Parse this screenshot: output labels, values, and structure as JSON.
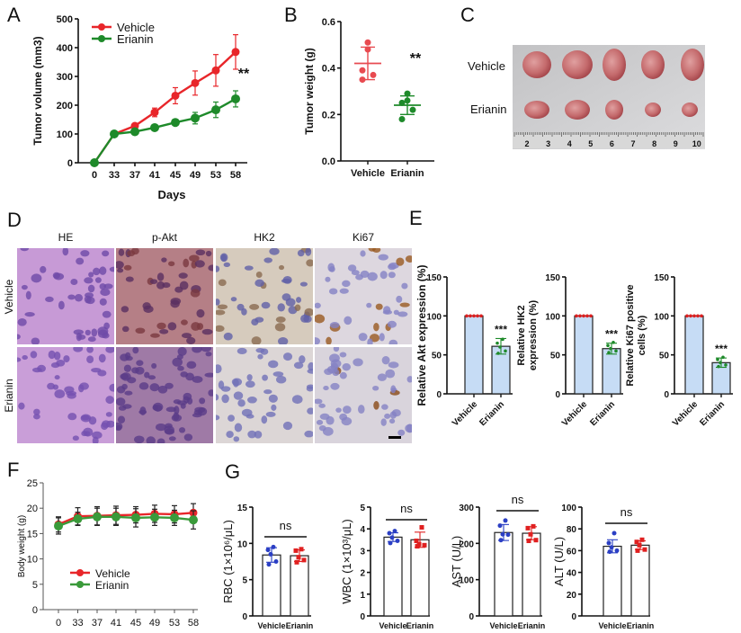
{
  "panel_labels": [
    "A",
    "B",
    "C",
    "D",
    "E",
    "F",
    "G"
  ],
  "colors": {
    "vehicle": "#e8262a",
    "erianin": "#1e8a2a",
    "erianin_f": "#3a9a3a",
    "bar_fill_e": "#c6dcf5",
    "blue": "#2b3fc4",
    "red": "#e02020"
  },
  "photo": {
    "row_labels": [
      "Vehicle",
      "Erianin"
    ],
    "ruler_ticks": [
      "2",
      "3",
      "4",
      "5",
      "6",
      "7",
      "8",
      "9",
      "10"
    ]
  },
  "histology": {
    "columns": [
      "HE",
      "p-Akt",
      "HK2",
      "Ki67"
    ],
    "rows": [
      "Vehicle",
      "Erianin"
    ]
  },
  "chart_data": [
    {
      "id": "A",
      "type": "line",
      "title": "",
      "xlabel": "Days",
      "ylabel": "Tumor volume (mm3)",
      "categories": [
        "0",
        "33",
        "37",
        "41",
        "45",
        "49",
        "53",
        "58"
      ],
      "ylim": [
        0,
        500
      ],
      "yticks": [
        "0",
        "100",
        "200",
        "300",
        "400",
        "500"
      ],
      "legend": "top-left",
      "annotation": "**",
      "series": [
        {
          "name": "Vehicle",
          "color": "#e8262a",
          "values": [
            0,
            100,
            128,
            175,
            233,
            277,
            321,
            385
          ],
          "errors": [
            0,
            5,
            8,
            15,
            28,
            42,
            55,
            60
          ]
        },
        {
          "name": "Erianin",
          "color": "#1e8a2a",
          "values": [
            0,
            100,
            108,
            122,
            140,
            155,
            184,
            222
          ],
          "errors": [
            0,
            5,
            10,
            10,
            10,
            20,
            27,
            28
          ]
        }
      ]
    },
    {
      "id": "B",
      "type": "scatter",
      "title": "",
      "xlabel": "",
      "ylabel": "Tumor weight (g)",
      "categories": [
        "Vehicle",
        "Erianin"
      ],
      "ylim": [
        0,
        0.6
      ],
      "yticks": [
        "0.0",
        "0.2",
        "0.4",
        "0.6"
      ],
      "annotation": "**",
      "groups": [
        {
          "name": "Vehicle",
          "color": "#e84a50",
          "points": [
            0.51,
            0.48,
            0.39,
            0.37,
            0.35
          ],
          "mean": 0.42,
          "sd": 0.07
        },
        {
          "name": "Erianin",
          "color": "#1e8a2a",
          "points": [
            0.29,
            0.26,
            0.25,
            0.22,
            0.18
          ],
          "mean": 0.24,
          "sd": 0.04
        }
      ]
    },
    {
      "id": "E1",
      "type": "bar",
      "ylabel": "Relative Akt expression (%)",
      "ylabel2": "",
      "categories": [
        "Vehicle",
        "Erianin"
      ],
      "ylim": [
        0,
        150
      ],
      "yticks": [
        "0",
        "50",
        "100",
        "150"
      ],
      "annotation": "***",
      "groups": [
        {
          "name": "Vehicle",
          "value": 100,
          "sd": 0,
          "points": [
            100,
            100,
            100,
            100,
            100
          ],
          "color": "#e02020"
        },
        {
          "name": "Erianin",
          "value": 61,
          "sd": 10,
          "points": [
            70,
            65,
            60,
            55,
            52
          ],
          "color": "#1e8a2a"
        }
      ]
    },
    {
      "id": "E2",
      "type": "bar",
      "ylabel": "Relative HK2",
      "ylabel2": "expression (%)",
      "categories": [
        "Vehicle",
        "Erianin"
      ],
      "ylim": [
        0,
        150
      ],
      "yticks": [
        "0",
        "50",
        "100",
        "150"
      ],
      "annotation": "***",
      "groups": [
        {
          "name": "Vehicle",
          "value": 100,
          "sd": 0,
          "points": [
            100,
            100,
            100,
            100,
            100
          ],
          "color": "#e02020"
        },
        {
          "name": "Erianin",
          "value": 58,
          "sd": 7,
          "points": [
            66,
            62,
            58,
            55,
            53
          ],
          "color": "#1e8a2a"
        }
      ]
    },
    {
      "id": "E3",
      "type": "bar",
      "ylabel": "Relative Ki67 positive",
      "ylabel2": "cells (%)",
      "categories": [
        "Vehicle",
        "Erianin"
      ],
      "ylim": [
        0,
        150
      ],
      "yticks": [
        "0",
        "50",
        "100",
        "150"
      ],
      "annotation": "***",
      "groups": [
        {
          "name": "Vehicle",
          "value": 100,
          "sd": 0,
          "points": [
            100,
            100,
            100,
            100,
            100
          ],
          "color": "#e02020"
        },
        {
          "name": "Erianin",
          "value": 40,
          "sd": 6,
          "points": [
            47,
            44,
            40,
            37,
            35
          ],
          "color": "#1e8a2a"
        }
      ]
    },
    {
      "id": "F",
      "type": "line",
      "title": "",
      "xlabel": "",
      "ylabel": "Body weight (g)",
      "categories": [
        "0",
        "33",
        "37",
        "41",
        "45",
        "49",
        "53",
        "58"
      ],
      "ylim": [
        0,
        25
      ],
      "yticks": [
        "0",
        "5",
        "10",
        "15",
        "20",
        "25"
      ],
      "legend": "center-left",
      "series": [
        {
          "name": "Vehicle",
          "color": "#e8262a",
          "values": [
            16.8,
            18.4,
            18.5,
            18.6,
            18.7,
            18.9,
            18.8,
            19.1
          ],
          "errors": [
            1.5,
            1.7,
            1.8,
            1.8,
            1.6,
            1.7,
            1.7,
            1.8
          ]
        },
        {
          "name": "Erianin",
          "color": "#3a9a3a",
          "values": [
            16.5,
            17.9,
            18.3,
            18.3,
            18.1,
            18.2,
            18.1,
            17.7
          ],
          "errors": [
            1.6,
            1.3,
            1.7,
            1.7,
            1.8,
            1.6,
            1.5,
            1.8
          ]
        }
      ]
    },
    {
      "id": "G1",
      "type": "bar",
      "ylabel": "RBC (1×10⁶/μL)",
      "categories": [
        "Vehicle",
        "Erianin"
      ],
      "ylim": [
        0,
        15
      ],
      "yticks": [
        "0",
        "5",
        "10",
        "15"
      ],
      "annotation": "ns",
      "groups": [
        {
          "name": "Vehicle",
          "value": 8.4,
          "sd": 1.0,
          "points": [
            9.5,
            9.1,
            8.5,
            7.5,
            7.1
          ],
          "color": "#2b3fc4"
        },
        {
          "name": "Erianin",
          "value": 8.3,
          "sd": 0.8,
          "points": [
            9.2,
            9.0,
            8.1,
            7.7,
            7.4
          ],
          "color": "#e02020"
        }
      ]
    },
    {
      "id": "G2",
      "type": "bar",
      "ylabel": "WBC (1×10³/μL)",
      "categories": [
        "Vehicle",
        "Erianin"
      ],
      "ylim": [
        0,
        5
      ],
      "yticks": [
        "0",
        "1",
        "2",
        "3",
        "4",
        "5"
      ],
      "annotation": "ns",
      "groups": [
        {
          "name": "Vehicle",
          "value": 3.62,
          "sd": 0.2,
          "points": [
            3.9,
            3.8,
            3.6,
            3.45,
            3.35
          ],
          "color": "#2b3fc4"
        },
        {
          "name": "Erianin",
          "value": 3.5,
          "sd": 0.35,
          "points": [
            4.07,
            3.45,
            3.3,
            3.25,
            3.2
          ],
          "color": "#e02020"
        }
      ]
    },
    {
      "id": "G3",
      "type": "bar",
      "ylabel": "AST (U/L)",
      "categories": [
        "Vehicle",
        "Erianin"
      ],
      "ylim": [
        0,
        300
      ],
      "yticks": [
        "0",
        "100",
        "200",
        "300"
      ],
      "annotation": "ns",
      "groups": [
        {
          "name": "Vehicle",
          "value": 230,
          "sd": 22,
          "points": [
            263,
            249,
            225,
            224,
            209
          ],
          "color": "#2b3fc4"
        },
        {
          "name": "Erianin",
          "value": 228,
          "sd": 18,
          "points": [
            247,
            242,
            225,
            209,
            207
          ],
          "color": "#e02020"
        }
      ]
    },
    {
      "id": "G4",
      "type": "bar",
      "ylabel": "ALT (U/L)",
      "categories": [
        "Vehicle",
        "Erianin"
      ],
      "ylim": [
        0,
        100
      ],
      "yticks": [
        "0",
        "20",
        "40",
        "60",
        "80",
        "100"
      ],
      "annotation": "ns",
      "groups": [
        {
          "name": "Vehicle",
          "value": 64,
          "sd": 6,
          "points": [
            76,
            67,
            63,
            60,
            59
          ],
          "color": "#2b3fc4"
        },
        {
          "name": "Erianin",
          "value": 65,
          "sd": 4,
          "points": [
            70,
            68,
            65,
            61,
            60
          ],
          "color": "#e02020"
        }
      ]
    }
  ]
}
